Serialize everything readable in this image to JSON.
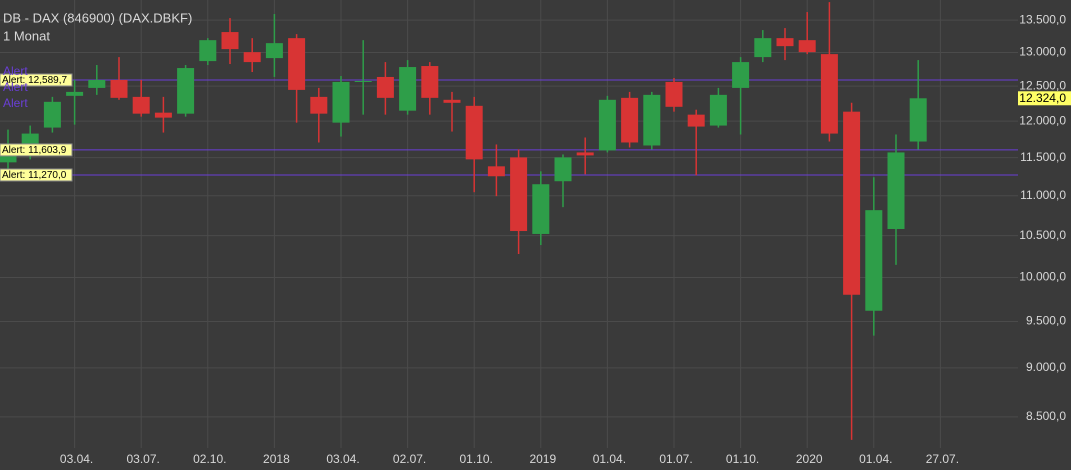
{
  "chart_data": {
    "type": "candlestick",
    "title": "DB - DAX (846900) (DAX.DBKF)",
    "subtitle": "1 Monat",
    "categories": [
      null,
      null,
      null,
      "03.04.",
      null,
      null,
      "03.07.",
      null,
      null,
      "02.10.",
      null,
      null,
      "2018",
      null,
      null,
      "03.04.",
      null,
      null,
      "02.07.",
      null,
      null,
      "01.10.",
      null,
      null,
      "2019",
      null,
      null,
      "01.04.",
      null,
      null,
      "01.07.",
      null,
      null,
      "01.10.",
      null,
      null,
      "2020",
      null,
      null,
      "01.04.",
      null,
      null,
      "27.07."
    ],
    "open": [
      11437,
      11583,
      11910,
      12359,
      12474,
      12590,
      12344,
      12119,
      12105,
      12870,
      13313,
      13005,
      12915,
      13219,
      12344,
      11979,
      12561,
      12634,
      12147,
      12796,
      12302,
      12216,
      11384,
      11503,
      10521,
      11188,
      11570,
      11597,
      12330,
      11664,
      12561,
      12091,
      11938,
      12474,
      12930,
      13219,
      13188,
      12975,
      12133,
      9620,
      10582,
      11718,
      null
    ],
    "high": [
      11882,
      11938,
      12344,
      12590,
      12811,
      12930,
      12590,
      12344,
      12811,
      13219,
      13532,
      13219,
      13596,
      13281,
      12474,
      12648,
      13188,
      12855,
      12885,
      12855,
      12416,
      12344,
      11678,
      11610,
      11318,
      11543,
      11773,
      12359,
      12416,
      12416,
      12619,
      12161,
      12474,
      12930,
      13344,
      13375,
      13627,
      13786,
      12259,
      11240,
      11814,
      12885,
      null
    ],
    "low": [
      11344,
      11477,
      11841,
      11951,
      12373,
      12302,
      12063,
      11841,
      12063,
      12811,
      12826,
      12707,
      12634,
      11979,
      11705,
      11786,
      12091,
      12091,
      12091,
      12091,
      11855,
      11046,
      10995,
      10278,
      10386,
      10855,
      11279,
      11570,
      11637,
      11610,
      12133,
      11266,
      11910,
      11814,
      12855,
      12885,
      12975,
      11718,
      8275,
      9345,
      10148,
      11610,
      null
    ],
    "close": [
      11678,
      11827,
      12273,
      12416,
      12590,
      12330,
      12105,
      12049,
      12766,
      13188,
      13051,
      12855,
      13142,
      12445,
      12105,
      12561,
      12575,
      12330,
      12781,
      12330,
      12259,
      11477,
      11253,
      10557,
      11149,
      11503,
      11530,
      12302,
      11705,
      12373,
      12202,
      11924,
      12373,
      12855,
      13219,
      13096,
      13005,
      11827,
      9801,
      10817,
      11570,
      12324,
      null
    ],
    "up_color": "#2e9e49",
    "down_color": "#d83434",
    "log_scale": true,
    "grid": true,
    "ylim": [
      7990,
      13820
    ],
    "yticks": [
      {
        "value": 8500,
        "label": "8.500,0"
      },
      {
        "value": 9000,
        "label": "9.000,0"
      },
      {
        "value": 9500,
        "label": "9.500,0"
      },
      {
        "value": 10000,
        "label": "10.000,0"
      },
      {
        "value": 10500,
        "label": "10.500,0"
      },
      {
        "value": 11000,
        "label": "11.000,0"
      },
      {
        "value": 11500,
        "label": "11.500,0"
      },
      {
        "value": 12000,
        "label": "12.000,0"
      },
      {
        "value": 12500,
        "label": "12.500,0"
      },
      {
        "value": 13000,
        "label": "13.000,0"
      },
      {
        "value": 13500,
        "label": "13.500,0"
      }
    ],
    "alerts": [
      {
        "value": 12589.7,
        "label": "Alert: 12,589,7"
      },
      {
        "value": 11603.9,
        "label": "Alert: 11,603,9"
      },
      {
        "value": 11270.0,
        "label": "Alert: 11,270,0"
      }
    ],
    "alert_color": "#6a3fd6",
    "alert_tags": [
      "Alert",
      "Alert",
      "Alert"
    ],
    "current": {
      "value": 12324,
      "label": "12.324,0"
    }
  }
}
